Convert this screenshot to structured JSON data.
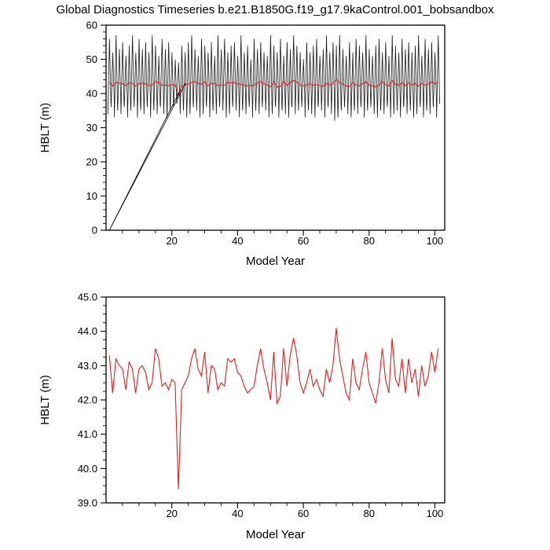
{
  "title": "Global Diagnostics Timeseries b.e21.B1850G.f19_g17.9kaControl.001_bobsandbox",
  "colors": {
    "background": "#ffffff",
    "frame": "#000000",
    "monthly_series": "#1a1a1a",
    "mean_series": "#e02020"
  },
  "chart_data": [
    {
      "type": "line",
      "title": "",
      "xlabel": "Model Year",
      "ylabel": "HBLT (m)",
      "xlim": [
        0,
        103
      ],
      "ylim": [
        0,
        60
      ],
      "xticks": [
        20,
        40,
        60,
        80,
        100
      ],
      "yticks": [
        0,
        10,
        20,
        30,
        40,
        50,
        60
      ],
      "x_minor_step": 5,
      "y_minor_step": 2,
      "ytick_decimals": 0,
      "grid": false,
      "legend": "none",
      "series": [
        {
          "name": "monthly-hblt-seasonal-cycle",
          "color": "#1a1a1a",
          "role": "seasonal",
          "annual_max": [
            56,
            52,
            57,
            53,
            55,
            51,
            54,
            57,
            52,
            56,
            53,
            55,
            52,
            57,
            54,
            51,
            56,
            53,
            55,
            52,
            50,
            49,
            54,
            52,
            55,
            57,
            53,
            51,
            56,
            54,
            52,
            55,
            51,
            57,
            53,
            56,
            52,
            54,
            55,
            51,
            57,
            52,
            54,
            50,
            56,
            53,
            55,
            52,
            51,
            57,
            54,
            52,
            56,
            51,
            55,
            53,
            57,
            54,
            52,
            50,
            55,
            52,
            54,
            56,
            51,
            53,
            57,
            52,
            55,
            54,
            57,
            53,
            51,
            55,
            52,
            56,
            54,
            52,
            57,
            53,
            51,
            54,
            56,
            52,
            55,
            51,
            57,
            54,
            52,
            56,
            53,
            55,
            52,
            54,
            57,
            51,
            56,
            53,
            55,
            52,
            57
          ],
          "annual_min": [
            34,
            36,
            33,
            35,
            34,
            36,
            33,
            35,
            36,
            33,
            35,
            34,
            36,
            33,
            35,
            34,
            36,
            34,
            33,
            35,
            36,
            37,
            34,
            35,
            33,
            34,
            36,
            35,
            33,
            34,
            36,
            33,
            35,
            34,
            36,
            35,
            33,
            34,
            36,
            35,
            33,
            35,
            34,
            36,
            33,
            35,
            34,
            36,
            35,
            33,
            34,
            36,
            33,
            35,
            34,
            33,
            36,
            34,
            35,
            36,
            33,
            35,
            34,
            33,
            36,
            35,
            33,
            36,
            34,
            32,
            33,
            35,
            36,
            34,
            33,
            35,
            34,
            36,
            33,
            35,
            36,
            34,
            33,
            35,
            34,
            36,
            33,
            34,
            35,
            33,
            36,
            34,
            35,
            33,
            34,
            36,
            33,
            35,
            34,
            36,
            33
          ]
        },
        {
          "name": "annual-running-mean",
          "color": "#e02020",
          "role": "mean",
          "values": [
            43.3,
            42.2,
            43.2,
            43.0,
            42.9,
            42.3,
            43.1,
            42.9,
            42.2,
            42.9,
            43.0,
            42.8,
            42.3,
            42.5,
            43.5,
            43.2,
            42.4,
            42.5,
            42.3,
            42.6,
            42.5,
            39.4,
            42.3,
            42.5,
            42.7,
            43.2,
            43.5,
            42.9,
            42.7,
            43.4,
            42.2,
            43.0,
            42.9,
            42.3,
            42.5,
            42.4,
            43.2,
            43.1,
            43.2,
            42.8,
            42.7,
            42.4,
            42.2,
            42.3,
            42.4,
            43.0,
            43.5,
            42.9,
            42.5,
            42.0,
            43.4,
            41.9,
            42.1,
            43.5,
            42.4,
            43.3,
            43.8,
            43.3,
            42.5,
            42.2,
            42.5,
            42.9,
            42.4,
            42.6,
            42.3,
            42.1,
            42.9,
            42.5,
            43.0,
            44.1,
            43.2,
            42.7,
            42.2,
            42.0,
            43.2,
            42.5,
            42.3,
            42.9,
            43.4,
            42.5,
            42.2,
            41.9,
            42.5,
            43.5,
            42.6,
            42.2,
            43.8,
            42.6,
            42.4,
            43.2,
            42.2,
            43.2,
            42.5,
            42.9,
            42.1,
            43.0,
            42.4,
            42.7,
            43.4,
            42.8,
            43.5
          ]
        },
        {
          "name": "spinup-artifact-lines",
          "color": "#000000",
          "role": "segments",
          "segments": [
            [
              [
                1,
                0
              ],
              [
                22.7,
                41.3
              ]
            ],
            [
              [
                1,
                0
              ],
              [
                24.3,
                43.2
              ]
            ]
          ]
        }
      ]
    },
    {
      "type": "line",
      "title": "",
      "xlabel": "Model Year",
      "ylabel": "HBLT (m)",
      "xlim": [
        0,
        103
      ],
      "ylim": [
        39.0,
        45.0
      ],
      "xticks": [
        20,
        40,
        60,
        80,
        100
      ],
      "yticks": [
        39.0,
        40.0,
        41.0,
        42.0,
        43.0,
        44.0,
        45.0
      ],
      "x_minor_step": 5,
      "y_minor_step": 0.25,
      "ytick_decimals": 1,
      "grid": false,
      "legend": "none",
      "series": [
        {
          "name": "annual-mean-hblt",
          "color": "#e02020",
          "role": "mean",
          "values": [
            43.3,
            42.2,
            43.2,
            43.0,
            42.9,
            42.3,
            43.1,
            42.9,
            42.2,
            42.9,
            43.0,
            42.8,
            42.3,
            42.5,
            43.5,
            43.2,
            42.4,
            42.5,
            42.3,
            42.6,
            42.5,
            39.4,
            42.3,
            42.5,
            42.7,
            43.2,
            43.5,
            42.9,
            42.7,
            43.4,
            42.2,
            43.0,
            42.9,
            42.3,
            42.5,
            42.4,
            43.2,
            43.1,
            43.2,
            42.8,
            42.7,
            42.4,
            42.2,
            42.3,
            42.4,
            43.0,
            43.5,
            42.9,
            42.5,
            42.0,
            43.4,
            41.9,
            42.1,
            43.5,
            42.4,
            43.3,
            43.8,
            43.3,
            42.5,
            42.2,
            42.5,
            42.9,
            42.4,
            42.6,
            42.3,
            42.1,
            42.9,
            42.5,
            43.0,
            44.1,
            43.2,
            42.7,
            42.2,
            42.0,
            43.2,
            42.5,
            42.3,
            42.9,
            43.4,
            42.5,
            42.2,
            41.9,
            42.5,
            43.5,
            42.6,
            42.2,
            43.8,
            42.6,
            42.4,
            43.2,
            42.2,
            43.2,
            42.5,
            42.9,
            42.1,
            43.0,
            42.4,
            42.7,
            43.4,
            42.8,
            43.5
          ]
        }
      ]
    }
  ]
}
